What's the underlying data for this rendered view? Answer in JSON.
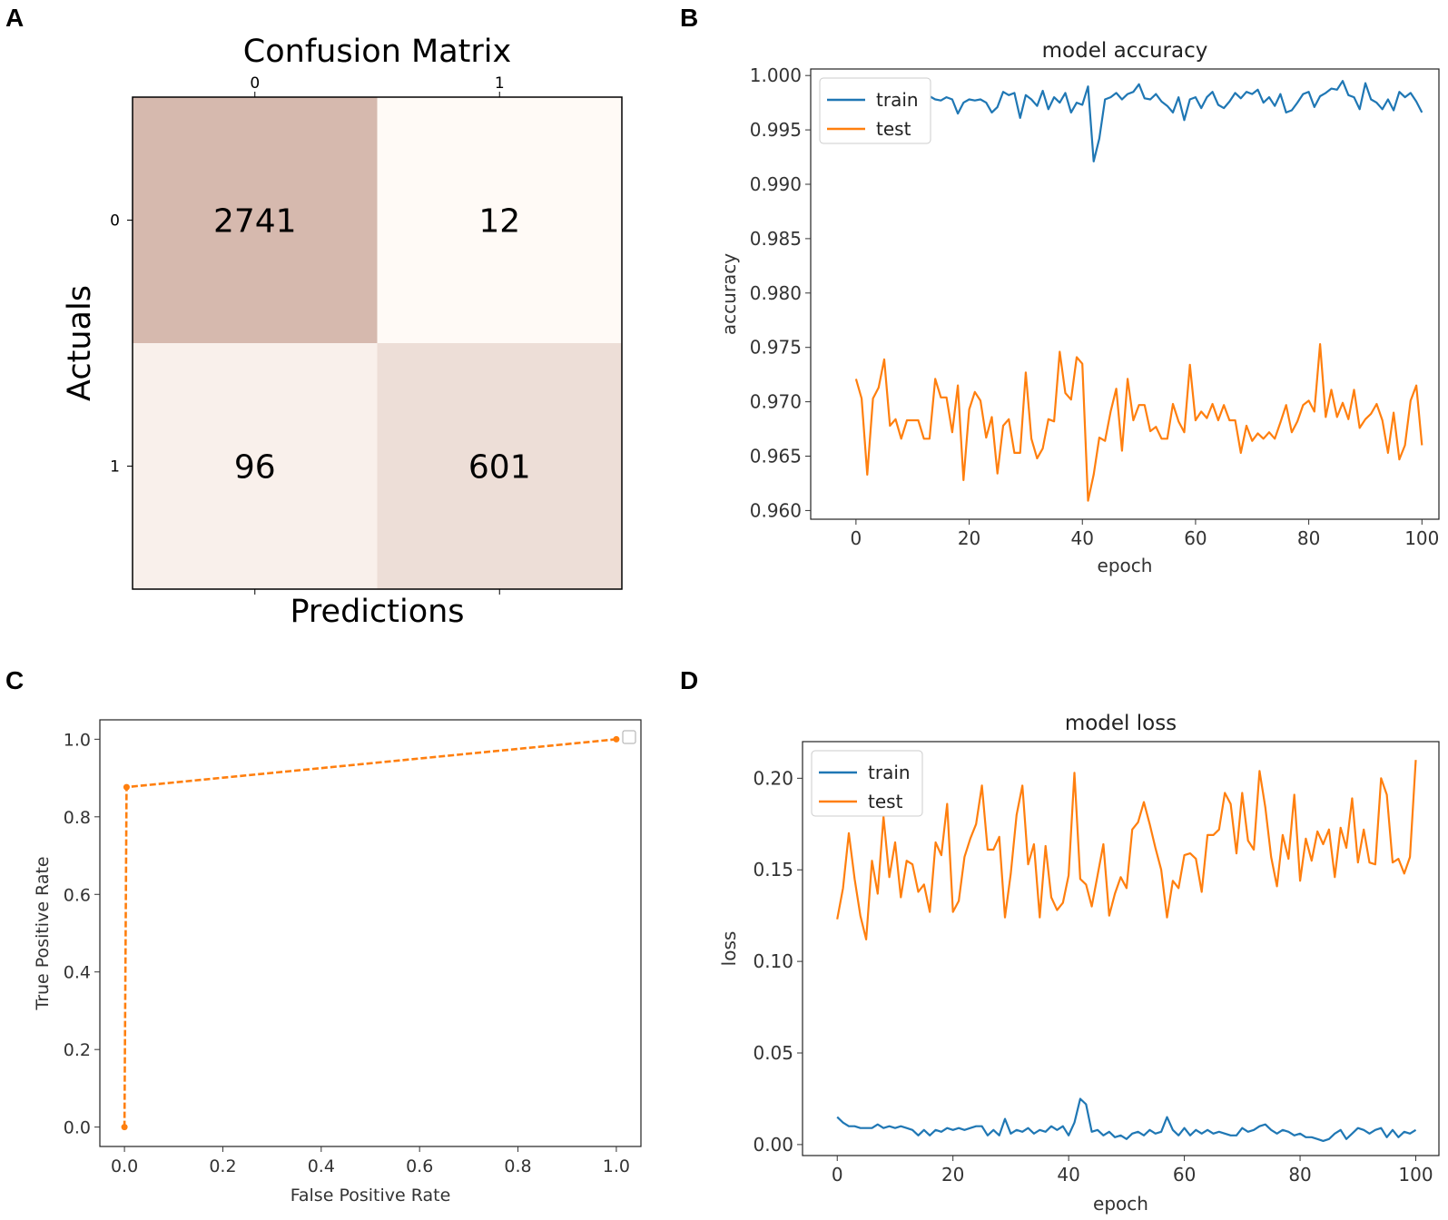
{
  "panels": {
    "a": "A",
    "b": "B",
    "c": "C",
    "d": "D"
  },
  "chart_data": [
    {
      "type": "heatmap",
      "title": "Confusion Matrix",
      "xlabel": "Predictions",
      "ylabel": "Actuals",
      "x_ticks": [
        "0",
        "1"
      ],
      "y_ticks": [
        "0",
        "1"
      ],
      "matrix": [
        [
          2741,
          12
        ],
        [
          96,
          601
        ]
      ],
      "colors": {
        "low": "#fffaf6",
        "high": "#d6b9ae"
      }
    },
    {
      "type": "line",
      "title": "model accuracy",
      "xlabel": "epoch",
      "ylabel": "accuracy",
      "xlim": [
        -8,
        103
      ],
      "ylim": [
        0.9592,
        1.0006
      ],
      "x_ticks": [
        0,
        20,
        40,
        60,
        80,
        100
      ],
      "y_ticks": [
        0.96,
        0.965,
        0.97,
        0.975,
        0.98,
        0.985,
        0.99,
        0.995,
        1.0
      ],
      "legend": {
        "position": "top-left",
        "entries": [
          "train",
          "test"
        ]
      },
      "series": [
        {
          "name": "train",
          "color": "#1f77b4",
          "values": [
            0.9962,
            0.9968,
            0.9969,
            0.9969,
            0.997,
            0.9975,
            0.9976,
            0.9977,
            0.9975,
            0.9978,
            0.9976,
            0.9979,
            0.9977,
            0.9981,
            0.9978,
            0.9977,
            0.998,
            0.9978,
            0.9965,
            0.9975,
            0.9978,
            0.9977,
            0.9978,
            0.9975,
            0.9966,
            0.9971,
            0.9985,
            0.9982,
            0.9984,
            0.9961,
            0.9982,
            0.9978,
            0.9972,
            0.9986,
            0.9969,
            0.998,
            0.9975,
            0.9984,
            0.9966,
            0.9975,
            0.9973,
            0.999,
            0.9921,
            0.9942,
            0.9978,
            0.998,
            0.9984,
            0.9978,
            0.9983,
            0.9985,
            0.9992,
            0.9979,
            0.9978,
            0.9983,
            0.9976,
            0.9972,
            0.9966,
            0.998,
            0.9959,
            0.9978,
            0.998,
            0.997,
            0.998,
            0.9985,
            0.9973,
            0.997,
            0.9976,
            0.9984,
            0.9979,
            0.9985,
            0.9983,
            0.9987,
            0.9975,
            0.998,
            0.9972,
            0.9983,
            0.9966,
            0.9968,
            0.9975,
            0.9983,
            0.9985,
            0.9971,
            0.9981,
            0.9984,
            0.9988,
            0.9987,
            0.9995,
            0.9982,
            0.998,
            0.9969,
            0.9993,
            0.9978,
            0.9975,
            0.9969,
            0.9978,
            0.9968,
            0.9985,
            0.998,
            0.9984,
            0.9976,
            0.9966
          ]
        },
        {
          "name": "test",
          "color": "#ff7f0e",
          "values": [
            0.9721,
            0.9703,
            0.9633,
            0.9703,
            0.9713,
            0.9739,
            0.9678,
            0.9684,
            0.9666,
            0.9683,
            0.9683,
            0.9683,
            0.9666,
            0.9666,
            0.9721,
            0.9704,
            0.9704,
            0.9672,
            0.9715,
            0.9628,
            0.9693,
            0.9709,
            0.9701,
            0.9667,
            0.9686,
            0.9634,
            0.9678,
            0.9684,
            0.9653,
            0.9653,
            0.9727,
            0.9666,
            0.9648,
            0.9657,
            0.9684,
            0.9682,
            0.9746,
            0.9708,
            0.9702,
            0.9741,
            0.9735,
            0.9609,
            0.9633,
            0.9667,
            0.9664,
            0.9691,
            0.9712,
            0.9655,
            0.9721,
            0.9683,
            0.9697,
            0.9697,
            0.9673,
            0.9677,
            0.9666,
            0.9666,
            0.9698,
            0.9682,
            0.9672,
            0.9734,
            0.9683,
            0.9691,
            0.9685,
            0.9698,
            0.9683,
            0.9697,
            0.9683,
            0.9683,
            0.9653,
            0.9678,
            0.9664,
            0.9671,
            0.9666,
            0.9672,
            0.9666,
            0.9681,
            0.9697,
            0.9672,
            0.9682,
            0.9697,
            0.9701,
            0.9691,
            0.9753,
            0.9686,
            0.9711,
            0.9686,
            0.9699,
            0.9684,
            0.9711,
            0.9676,
            0.9684,
            0.9689,
            0.9698,
            0.9683,
            0.9653,
            0.969,
            0.9647,
            0.966,
            0.9701,
            0.9715,
            0.966
          ]
        }
      ]
    },
    {
      "type": "line",
      "title": "",
      "xlabel": "False Positive Rate",
      "ylabel": "True Positive Rate",
      "xlim": [
        -0.05,
        1.05
      ],
      "ylim": [
        -0.05,
        1.05
      ],
      "x_ticks": [
        0.0,
        0.2,
        0.4,
        0.6,
        0.8,
        1.0
      ],
      "y_ticks": [
        0.0,
        0.2,
        0.4,
        0.6,
        0.8,
        1.0
      ],
      "legend": {
        "position": "top-right",
        "entries": []
      },
      "series": [
        {
          "name": "",
          "color": "#ff7f0e",
          "x": [
            0.0,
            0.0043,
            1.0
          ],
          "y": [
            0.0,
            0.8766,
            1.0
          ]
        }
      ]
    },
    {
      "type": "line",
      "title": "model loss",
      "xlabel": "epoch",
      "ylabel": "loss",
      "xlim": [
        -6,
        104
      ],
      "ylim": [
        -0.006,
        0.22
      ],
      "x_ticks": [
        0,
        20,
        40,
        60,
        80,
        100
      ],
      "y_ticks": [
        0.0,
        0.05,
        0.1,
        0.15,
        0.2
      ],
      "legend": {
        "position": "top-left",
        "entries": [
          "train",
          "test"
        ]
      },
      "series": [
        {
          "name": "train",
          "color": "#1f77b4",
          "values": [
            0.015,
            0.012,
            0.01,
            0.01,
            0.009,
            0.009,
            0.009,
            0.011,
            0.009,
            0.01,
            0.009,
            0.01,
            0.009,
            0.008,
            0.005,
            0.008,
            0.005,
            0.008,
            0.007,
            0.009,
            0.008,
            0.009,
            0.008,
            0.009,
            0.01,
            0.01,
            0.005,
            0.008,
            0.005,
            0.014,
            0.006,
            0.008,
            0.007,
            0.009,
            0.006,
            0.008,
            0.007,
            0.01,
            0.008,
            0.01,
            0.005,
            0.012,
            0.025,
            0.022,
            0.007,
            0.008,
            0.005,
            0.007,
            0.004,
            0.005,
            0.003,
            0.006,
            0.007,
            0.005,
            0.008,
            0.006,
            0.007,
            0.015,
            0.008,
            0.005,
            0.009,
            0.005,
            0.008,
            0.006,
            0.008,
            0.006,
            0.007,
            0.006,
            0.005,
            0.005,
            0.009,
            0.007,
            0.008,
            0.01,
            0.011,
            0.008,
            0.006,
            0.008,
            0.007,
            0.005,
            0.006,
            0.004,
            0.004,
            0.003,
            0.002,
            0.003,
            0.006,
            0.008,
            0.003,
            0.006,
            0.009,
            0.008,
            0.006,
            0.008,
            0.009,
            0.004,
            0.008,
            0.004,
            0.007,
            0.006,
            0.008
          ]
        },
        {
          "name": "test",
          "color": "#ff7f0e",
          "values": [
            0.123,
            0.14,
            0.17,
            0.145,
            0.125,
            0.112,
            0.155,
            0.137,
            0.179,
            0.146,
            0.165,
            0.135,
            0.155,
            0.153,
            0.138,
            0.142,
            0.127,
            0.165,
            0.158,
            0.186,
            0.127,
            0.133,
            0.157,
            0.167,
            0.175,
            0.196,
            0.161,
            0.161,
            0.168,
            0.124,
            0.148,
            0.18,
            0.196,
            0.153,
            0.164,
            0.124,
            0.163,
            0.135,
            0.128,
            0.132,
            0.147,
            0.203,
            0.145,
            0.142,
            0.13,
            0.147,
            0.164,
            0.125,
            0.137,
            0.146,
            0.14,
            0.172,
            0.176,
            0.187,
            0.175,
            0.162,
            0.15,
            0.124,
            0.144,
            0.14,
            0.158,
            0.159,
            0.156,
            0.138,
            0.169,
            0.169,
            0.172,
            0.192,
            0.186,
            0.159,
            0.192,
            0.166,
            0.161,
            0.204,
            0.184,
            0.157,
            0.141,
            0.169,
            0.156,
            0.191,
            0.144,
            0.167,
            0.155,
            0.171,
            0.164,
            0.172,
            0.146,
            0.173,
            0.162,
            0.189,
            0.154,
            0.172,
            0.154,
            0.153,
            0.2,
            0.191,
            0.154,
            0.156,
            0.148,
            0.157,
            0.21
          ]
        }
      ]
    }
  ]
}
